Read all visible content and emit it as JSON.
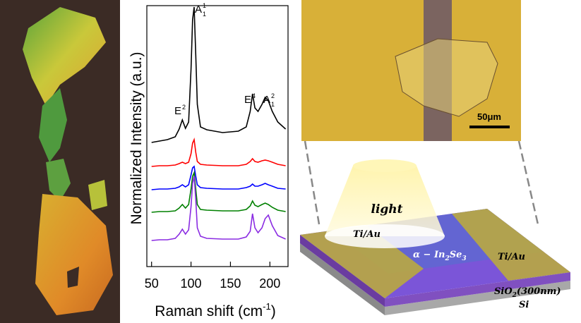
{
  "chart_data": {
    "type": "line",
    "xlabel": {
      "text": "Raman shift (cm",
      "sup": "-1",
      "close": ")"
    },
    "ylabel": "Normalized Intensity (a.u.)",
    "x": [
      50,
      60,
      70,
      80,
      85,
      89,
      93,
      97,
      100,
      102,
      104,
      106,
      108,
      112,
      120,
      140,
      160,
      170,
      175,
      178,
      181,
      185,
      190,
      194,
      198,
      203,
      210,
      220
    ],
    "series": [
      {
        "color": "#000000",
        "values": [
          17.6,
          17.8,
          18,
          18.4,
          19.5,
          20.8,
          19.6,
          20.5,
          28,
          35,
          36.8,
          30,
          23,
          19.8,
          19.4,
          19,
          19.2,
          19.8,
          22,
          24.5,
          22.5,
          22,
          23,
          24,
          23.5,
          22,
          20.5,
          19.5
        ]
      },
      {
        "color": "#ff0000",
        "values": [
          14.2,
          14.3,
          14.3,
          14.4,
          14.6,
          14.8,
          14.6,
          14.8,
          16,
          17.5,
          18,
          16.2,
          14.9,
          14.5,
          14.4,
          14.3,
          14.3,
          14.5,
          14.9,
          15.3,
          14.9,
          14.8,
          15,
          15.1,
          15,
          14.8,
          14.5,
          14.3
        ]
      },
      {
        "color": "#0000ff",
        "values": [
          10.9,
          11,
          11,
          11.1,
          11.3,
          11.6,
          11.3,
          11.6,
          13,
          14,
          14.2,
          12.8,
          11.6,
          11.2,
          11.1,
          11,
          11,
          11.2,
          11.4,
          11.7,
          11.4,
          11.4,
          11.6,
          11.8,
          11.6,
          11.4,
          11.1,
          11
        ]
      },
      {
        "color": "#008000",
        "values": [
          7.7,
          7.8,
          7.8,
          7.9,
          8.3,
          8.8,
          8.3,
          8.8,
          11,
          12.8,
          13.3,
          11,
          8.8,
          8.1,
          8,
          7.9,
          7.9,
          8.1,
          8.6,
          9.3,
          8.7,
          8.5,
          8.8,
          9,
          8.8,
          8.4,
          8,
          7.8
        ]
      },
      {
        "color": "#8a2be2",
        "values": [
          3.7,
          3.8,
          3.8,
          4,
          4.6,
          5.3,
          4.6,
          5.2,
          8.5,
          11.8,
          12.8,
          9.5,
          5.5,
          4.3,
          4,
          3.9,
          3.9,
          4.2,
          5,
          7.5,
          5.5,
          4.8,
          5.5,
          6.8,
          7.3,
          5.8,
          4.4,
          3.9
        ]
      }
    ],
    "annotations": [
      {
        "text": "E",
        "sup": "2"
      },
      {
        "text": "A",
        "sup": "1",
        "sub": "1"
      },
      {
        "text": "E",
        "sup": "4"
      },
      {
        "text": "A",
        "sup": "2",
        "sub": "1"
      }
    ],
    "xlim": [
      44,
      223
    ],
    "xticks": [
      50,
      100,
      150,
      200
    ],
    "ylim": [
      0,
      37
    ]
  },
  "schematic": {
    "scale_bar": "50μm",
    "light": "light",
    "electrode_left": "Ti/Au",
    "electrode_right": "Ti/Au",
    "channel": [
      "α − In",
      "2",
      "Se",
      "3"
    ],
    "oxide": [
      "SiO",
      "2",
      "(300nm)"
    ],
    "substrate": "Si"
  }
}
